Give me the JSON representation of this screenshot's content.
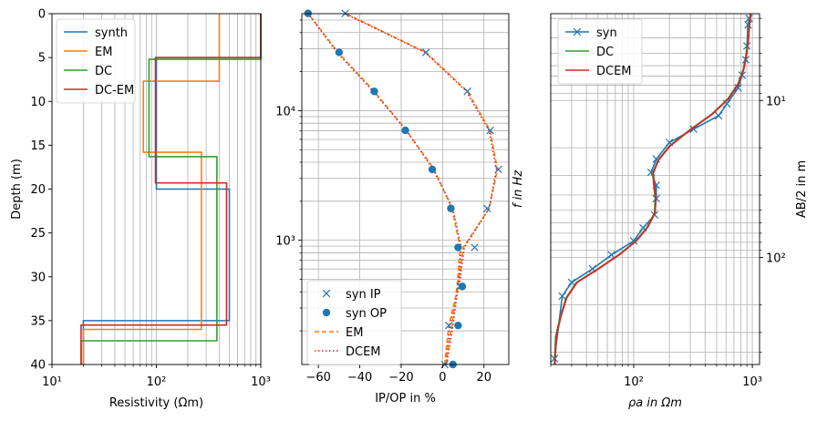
{
  "colors": {
    "blue": "#1f77b4",
    "orange": "#ff7f0e",
    "green": "#2ca02c",
    "red": "#d62728",
    "grid": "#b0b0b0",
    "dcem_dotted": "#d62728",
    "em_dashed": "#ff7f0e"
  },
  "chart_data": [
    {
      "type": "line",
      "xlabel": "Resistivity (Ωm)",
      "ylabel": "Depth (m)",
      "xscale": "log",
      "xlim": [
        10,
        1000
      ],
      "ylim": [
        40,
        0
      ],
      "y_inverted": true,
      "grid": true,
      "xtick_labels": [
        "10¹",
        "10²",
        "10³"
      ],
      "ytick_labels": [
        "0",
        "5",
        "10",
        "15",
        "20",
        "25",
        "30",
        "35",
        "40"
      ],
      "legend_position": "top-left",
      "series": [
        {
          "name": "synth",
          "color": "blue",
          "points": [
            [
              1000,
              0
            ],
            [
              1000,
              5
            ],
            [
              100,
              5
            ],
            [
              100,
              20
            ],
            [
              500,
              20
            ],
            [
              500,
              35
            ],
            [
              20,
              35
            ],
            [
              20,
              40
            ]
          ]
        },
        {
          "name": "EM",
          "color": "orange",
          "points": [
            [
              400,
              0
            ],
            [
              400,
              7.7
            ],
            [
              75,
              7.7
            ],
            [
              75,
              15.8
            ],
            [
              270,
              15.8
            ],
            [
              270,
              36
            ],
            [
              20,
              36
            ],
            [
              20,
              40
            ]
          ]
        },
        {
          "name": "DC",
          "color": "green",
          "points": [
            [
              1000,
              0
            ],
            [
              1000,
              5.2
            ],
            [
              85,
              5.2
            ],
            [
              85,
              16.3
            ],
            [
              380,
              16.3
            ],
            [
              380,
              37.3
            ],
            [
              19,
              37.3
            ],
            [
              19,
              40
            ]
          ]
        },
        {
          "name": "DC-EM",
          "color": "red",
          "points": [
            [
              1000,
              0
            ],
            [
              1000,
              5
            ],
            [
              98,
              5
            ],
            [
              98,
              19.3
            ],
            [
              470,
              19.3
            ],
            [
              470,
              35.5
            ],
            [
              19,
              35.5
            ],
            [
              19,
              40
            ]
          ]
        }
      ]
    },
    {
      "type": "scatter",
      "xlabel": "IP/OP in %",
      "ylabel": "f in Hz",
      "ylabel_position": "right",
      "yscale": "log",
      "xlim": [
        -68,
        32
      ],
      "ylim": [
        110,
        56000
      ],
      "grid": true,
      "xtick_labels": [
        "−60",
        "−40",
        "−20",
        "0",
        "20"
      ],
      "xtick_values": [
        -60,
        -40,
        -20,
        0,
        20
      ],
      "ytick_labels": [
        "10³",
        "10⁴"
      ],
      "legend_position": "bottom-left",
      "freqs": [
        110,
        220,
        440,
        880,
        1760,
        3520,
        7040,
        14080,
        28160,
        56320
      ],
      "series": [
        {
          "name": "syn IP",
          "marker": "x",
          "color": "blue",
          "values": [
            1.0,
            3.0,
            8.5,
            15.5,
            21.5,
            27.0,
            23.0,
            12.0,
            -8.0,
            -47.0
          ]
        },
        {
          "name": "syn OP",
          "marker": "o",
          "color": "blue",
          "values": [
            5.0,
            7.5,
            9.5,
            7.5,
            4.0,
            -5.0,
            -18.0,
            -33.0,
            -50.0,
            -65.0
          ]
        },
        {
          "name": "EM",
          "line": "dashed",
          "color": "orange",
          "ip": [
            1.0,
            3.0,
            7.5,
            10.0,
            22.5,
            26.5,
            23.0,
            12.0,
            -8.0,
            -47.0
          ],
          "op": [
            1.5,
            4.5,
            7.0,
            8.5,
            4.5,
            -4.0,
            -17.5,
            -33.0,
            -50.5,
            -65.0
          ]
        },
        {
          "name": "DCEM",
          "line": "dotted",
          "color": "red",
          "ip": [
            1.5,
            3.5,
            8.0,
            10.5,
            22.5,
            26.0,
            22.5,
            11.5,
            -8.5,
            -47.5
          ],
          "op": [
            2.0,
            5.0,
            7.5,
            9.0,
            5.0,
            -4.5,
            -17.5,
            -33.5,
            -51.0,
            -65.0
          ]
        }
      ]
    },
    {
      "type": "line",
      "xlabel": "ρa in Ωm",
      "ylabel": "AB/2 in m",
      "ylabel_position": "right",
      "xscale": "log",
      "yscale": "log",
      "xlim": [
        20,
        1150
      ],
      "ylim": [
        480,
        2.8
      ],
      "y_inverted": true,
      "grid": true,
      "xtick_labels": [
        "10²",
        "10³"
      ],
      "ytick_labels": [
        "10¹",
        "10²"
      ],
      "legend_position": "top-left",
      "ab2": [
        3.0,
        3.6,
        4.5,
        5.5,
        6.8,
        8.3,
        10.2,
        12.5,
        15.3,
        18.8,
        23.0,
        28.2,
        34.6,
        42.4,
        52.0,
        63.7,
        78.1,
        95.8,
        117.5,
        144,
        176.6,
        216.6,
        265.6,
        325.7,
        399.4,
        460
      ],
      "series": [
        {
          "name": "syn",
          "marker": "x",
          "line": "solid",
          "color": "blue",
          "x_at": [
            940,
            920,
            900,
            880,
            820,
            760,
            610,
            520,
            320,
            200,
            155,
            140,
            155,
            155,
            150,
            120,
            100,
            65,
            45,
            30,
            25,
            21.5
          ],
          "y_at": [
            3.0,
            3.3,
            4.5,
            5.5,
            6.9,
            8.3,
            10.5,
            12.5,
            15.2,
            18.5,
            23.6,
            28.7,
            34.7,
            42.1,
            53.5,
            64.7,
            78.4,
            96.2,
            118,
            144,
            176,
            440
          ]
        },
        {
          "name": "DC",
          "line": "solid",
          "color": "green",
          "x_at": [
            960,
            940,
            920,
            890,
            840,
            760,
            620,
            450,
            300,
            200,
            160,
            145,
            148,
            152,
            150,
            130,
            105,
            75,
            50,
            33,
            27,
            24,
            22,
            21.5
          ],
          "y_at": [
            2.8,
            3.2,
            4.0,
            5.0,
            6.3,
            7.8,
            9.8,
            12.3,
            15.3,
            19.5,
            24.0,
            29.0,
            35.0,
            42.0,
            52.0,
            64.0,
            78.0,
            96.0,
            118.0,
            144.0,
            180.0,
            240.0,
            320.0,
            480.0
          ]
        },
        {
          "name": "DCEM",
          "line": "solid",
          "color": "red",
          "x_at": [
            960,
            940,
            920,
            890,
            840,
            760,
            620,
            450,
            300,
            200,
            160,
            145,
            148,
            152,
            150,
            130,
            105,
            75,
            50,
            33,
            27,
            24,
            22,
            21.5
          ],
          "y_at": [
            2.8,
            3.2,
            4.0,
            5.0,
            6.3,
            7.8,
            9.8,
            12.3,
            15.3,
            19.5,
            24.0,
            29.0,
            35.0,
            42.0,
            52.0,
            64.0,
            78.0,
            96.0,
            118.0,
            144.0,
            180.0,
            240.0,
            320.0,
            480.0
          ]
        }
      ]
    }
  ]
}
